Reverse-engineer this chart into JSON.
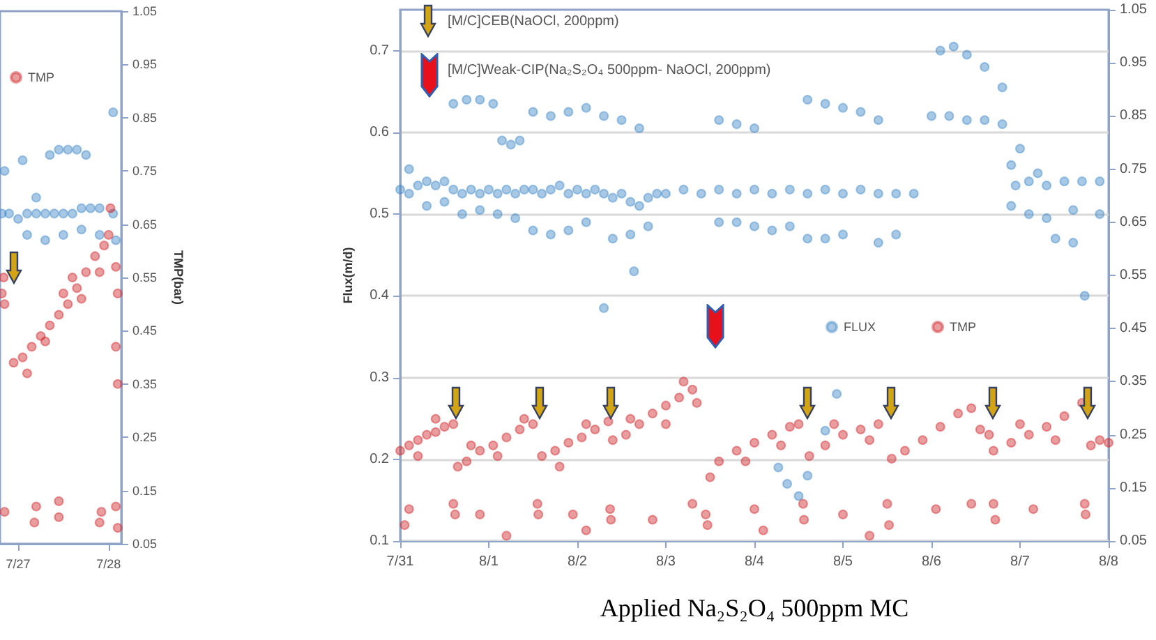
{
  "chart_data": [
    {
      "type": "scatter",
      "y2label": "TMP(bar)",
      "legend": "top left",
      "marker": "circle",
      "xlim": [
        "--07-26T19:12",
        "--07-28T03:22"
      ],
      "xticks": [
        {
          "value": "--07-27",
          "label": "7/27"
        },
        {
          "value": "--07-28",
          "label": "7/28"
        }
      ],
      "y2lim": [
        0.05,
        1.05
      ],
      "y2ticks": [
        0.05,
        0.15,
        0.25,
        0.35,
        0.45,
        0.55,
        0.65,
        0.75,
        0.85,
        0.95,
        1.05
      ],
      "series": [
        {
          "color": "#3f87c8",
          "axis": "y2",
          "x": [
            "--07-26T19:41",
            "--07-26T21:36",
            "--07-27T00:00",
            "--07-27T02:24",
            "--07-27T04:48",
            "--07-27T07:12",
            "--07-27T09:36",
            "--07-27T12:00",
            "--07-27T14:24",
            "--07-27T16:48",
            "--07-27T19:12",
            "--07-27T21:36",
            "--07-28T00:00",
            "--07-28T01:12",
            "--07-27T08:24",
            "--07-27T10:48",
            "--07-27T13:12",
            "--07-27T15:36",
            "--07-27T18:00",
            "--07-27T02:24",
            "--07-27T07:12",
            "--07-27T12:00",
            "--07-27T16:48",
            "--07-27T21:36",
            "--07-28T01:55",
            "--07-26T20:24",
            "--07-27T01:12",
            "--07-28T01:12",
            "--07-27T04:48"
          ],
          "values": [
            0.67,
            0.67,
            0.66,
            0.67,
            0.67,
            0.67,
            0.67,
            0.67,
            0.67,
            0.68,
            0.68,
            0.68,
            null,
            0.67,
            0.78,
            0.79,
            0.79,
            0.79,
            0.78,
            0.63,
            0.62,
            0.63,
            0.64,
            0.63,
            0.62,
            0.75,
            0.77,
            0.86,
            0.7
          ]
        },
        {
          "name": "TMP",
          "color": "#d0262a",
          "axis": "y2",
          "x": [
            "--07-26T22:48",
            "--07-27T01:12",
            "--07-27T03:36",
            "--07-27T06:00",
            "--07-27T08:24",
            "--07-27T10:48",
            "--07-27T13:12",
            "--07-27T15:36",
            "--07-27T18:00",
            "--07-27T20:24",
            "--07-27T22:48",
            "--07-28T00:00",
            "--07-28T00:29",
            "--07-27T02:24",
            "--07-27T07:12",
            "--07-27T12:00",
            "--07-27T16:48",
            "--07-27T21:36",
            "--07-27T14:24",
            "--07-26T19:41",
            "--07-26T20:24",
            "--07-26T20:10",
            "--07-28T01:55",
            "--07-28T02:24",
            "--07-28T01:55",
            "--07-28T02:24",
            "--07-26T20:24",
            "--07-27T04:19",
            "--07-27T04:48",
            "--07-27T10:48",
            "--07-27T10:48",
            "--07-27T21:36",
            "--07-27T22:05",
            "--07-28T01:55",
            "--07-28T02:24"
          ],
          "values": [
            0.39,
            0.4,
            0.42,
            0.44,
            0.46,
            0.48,
            0.5,
            0.53,
            0.56,
            0.59,
            0.61,
            0.63,
            0.68,
            0.37,
            0.43,
            0.52,
            0.51,
            0.56,
            0.55,
            0.52,
            0.5,
            0.55,
            0.57,
            0.52,
            0.42,
            0.35,
            0.11,
            0.09,
            0.12,
            0.1,
            0.13,
            0.09,
            0.11,
            0.12,
            0.08
          ]
        }
      ]
    },
    {
      "type": "scatter",
      "ylabel": "Flux(m/d)",
      "legend": "right",
      "marker": "circle",
      "grid": "y",
      "annotations": [
        "[M/C]CEB(NaOCl, 200ppm)",
        "[M/C]Weak-CIP(Na₂S₂O₄ 500ppm- NaOCl, 200ppm)",
        "Applied Na₂S₂O₄ 500ppm MC"
      ],
      "xlim": [
        "--07-31",
        "--08-08"
      ],
      "xticks": [
        {
          "value": "--07-31",
          "label": "7/31"
        },
        {
          "value": "--08-01",
          "label": "8/1"
        },
        {
          "value": "--08-02",
          "label": "8/2"
        },
        {
          "value": "--08-03",
          "label": "8/3"
        },
        {
          "value": "--08-04",
          "label": "8/4"
        },
        {
          "value": "--08-05",
          "label": "8/5"
        },
        {
          "value": "--08-06",
          "label": "8/6"
        },
        {
          "value": "--08-07",
          "label": "8/7"
        },
        {
          "value": "--08-08",
          "label": "8/8"
        }
      ],
      "ylim": [
        0.1,
        0.75
      ],
      "yticks": [
        0.1,
        0.2,
        0.3,
        0.4,
        0.5,
        0.6,
        0.7
      ],
      "y2lim": [
        0.05,
        1.05
      ],
      "y2ticks": [
        0.05,
        0.15,
        0.25,
        0.35,
        0.45,
        0.55,
        0.65,
        0.75,
        0.85,
        0.95,
        1.05
      ],
      "series": [
        {
          "name": "FLUX",
          "color": "#3f87c8",
          "x": [
            "--07-31T00:00",
            "--07-31T02:24",
            "--07-31T04:48",
            "--07-31T07:12",
            "--07-31T09:36",
            "--07-31T12:00",
            "--07-31T14:24",
            "--07-31T16:48",
            "--07-31T19:12",
            "--07-31T21:36",
            "--08-01T00:00",
            "--08-01T02:24",
            "--08-01T04:48",
            "--08-01T07:12",
            "--08-01T09:36",
            "--08-01T12:00",
            "--08-01T14:24",
            "--08-01T16:48",
            "--08-01T19:12",
            "--08-01T21:36",
            "--08-02T00:00",
            "--08-02T02:24",
            "--08-02T04:48",
            "--08-02T07:12",
            "--08-02T09:36",
            "--08-02T12:00",
            "--08-02T14:24",
            "--08-02T16:48",
            "--08-02T19:12",
            "--08-02T21:36",
            "--08-03T00:00",
            "--08-03T04:48",
            "--08-03T09:36",
            "--08-03T14:24",
            "--08-03T19:12",
            "--08-04T00:00",
            "--08-04T04:48",
            "--08-04T09:36",
            "--08-04T14:24",
            "--08-04T19:12",
            "--08-05T00:00",
            "--08-05T04:48",
            "--08-05T09:36",
            "--08-05T14:24",
            "--08-05T19:12",
            "--08-06T00:00",
            "--08-06T04:48",
            "--08-06T09:36",
            "--08-06T14:24",
            "--08-06T19:12",
            "--08-06T22:48",
            "--08-07T02:24",
            "--08-07T07:12",
            "--08-07T12:00",
            "--08-07T16:48",
            "--08-07T21:36",
            "--07-31T02:24",
            "--07-31T07:12",
            "--07-31T12:00",
            "--07-31T14:24",
            "--07-31T18:00",
            "--07-31T21:36",
            "--08-01T01:12",
            "--08-01T03:36",
            "--08-01T06:00",
            "--08-01T08:24",
            "--08-01T12:00",
            "--08-01T16:48",
            "--08-01T21:36",
            "--08-02T02:24",
            "--08-02T07:12",
            "--08-02T12:00",
            "--08-02T16:48",
            "--08-03T14:24",
            "--08-03T19:12",
            "--08-04T00:00",
            "--08-04T14:24",
            "--08-04T19:12",
            "--08-05T00:00",
            "--08-05T04:48",
            "--08-05T09:36",
            "--08-06T02:24",
            "--08-06T06:00",
            "--08-06T09:36",
            "--08-06T14:24",
            "--08-06T19:12",
            "--07-31T16:48",
            "--07-31T21:36",
            "--08-01T02:24",
            "--08-01T07:12",
            "--08-01T12:00",
            "--08-01T16:48",
            "--08-01T21:36",
            "--08-02T02:24",
            "--08-02T09:36",
            "--08-02T14:24",
            "--08-02T19:12",
            "--08-03T14:24",
            "--08-03T19:12",
            "--08-04T00:00",
            "--08-04T04:48",
            "--08-04T09:36",
            "--08-04T14:24",
            "--08-04T19:12",
            "--08-05T00:00",
            "--08-05T09:36",
            "--08-05T14:24",
            "--08-06T21:36",
            "--08-07T02:24",
            "--08-07T07:12",
            "--08-07T14:24",
            "--08-07T21:36",
            "--08-06T21:36",
            "--08-07T00:00",
            "--08-07T04:48",
            "--08-07T09:36",
            "--08-07T14:24",
            "--08-02T07:12",
            "--08-04T06:29",
            "--08-04T08:53",
            "--08-04T12:00",
            "--08-04T14:24",
            "--08-04T19:12",
            "--08-04T22:19",
            "--08-07T17:31",
            "--08-02T15:22"
          ],
          "values": [
            0.53,
            0.525,
            0.535,
            0.54,
            0.535,
            0.54,
            0.53,
            0.525,
            0.53,
            0.525,
            0.53,
            0.525,
            0.53,
            0.525,
            0.53,
            0.53,
            0.525,
            0.53,
            0.535,
            0.525,
            0.53,
            0.525,
            0.53,
            0.525,
            0.52,
            0.525,
            0.515,
            0.51,
            0.52,
            0.525,
            0.525,
            0.53,
            0.525,
            0.53,
            0.525,
            0.53,
            0.525,
            0.53,
            0.525,
            0.53,
            0.525,
            0.53,
            0.525,
            0.525,
            0.525,
            0.62,
            0.62,
            0.615,
            0.615,
            0.61,
            0.535,
            0.54,
            0.535,
            0.54,
            0.54,
            0.54,
            0.555,
            0.51,
            0.515,
            0.635,
            0.64,
            0.64,
            0.635,
            0.59,
            0.585,
            0.59,
            0.625,
            0.62,
            0.625,
            0.63,
            0.62,
            0.615,
            0.605,
            0.615,
            0.61,
            0.605,
            0.64,
            0.635,
            0.63,
            0.625,
            0.615,
            0.7,
            0.705,
            0.695,
            0.68,
            0.655,
            0.5,
            0.505,
            0.5,
            0.495,
            0.48,
            0.475,
            0.48,
            0.49,
            0.47,
            0.475,
            0.485,
            0.49,
            0.49,
            0.485,
            0.48,
            0.485,
            0.47,
            0.47,
            0.475,
            0.465,
            0.475,
            0.51,
            0.5,
            0.495,
            0.505,
            0.5,
            0.56,
            0.58,
            0.55,
            0.47,
            0.465,
            0.385,
            0.19,
            0.17,
            0.155,
            0.18,
            0.235,
            0.28,
            0.4,
            0.43
          ]
        },
        {
          "name": "TMP",
          "color": "#d0262a",
          "axis": "y2",
          "x": [
            "--07-31T00:00",
            "--07-31T02:24",
            "--07-31T04:48",
            "--07-31T07:12",
            "--07-31T09:36",
            "--07-31T12:00",
            "--07-31T14:24",
            "--07-31T04:48",
            "--07-31T09:36",
            "--07-31T15:36",
            "--07-31T18:00",
            "--07-31T21:36",
            "--08-01T01:12",
            "--08-01T04:48",
            "--08-01T08:24",
            "--08-01T12:00",
            "--07-31T19:12",
            "--08-01T02:24",
            "--08-01T09:36",
            "--08-01T14:24",
            "--08-01T18:00",
            "--08-01T21:36",
            "--08-02T01:12",
            "--08-02T04:48",
            "--08-02T08:24",
            "--08-01T19:12",
            "--08-02T02:24",
            "--08-02T09:36",
            "--08-02T13:12",
            "--08-02T16:48",
            "--08-02T20:24",
            "--08-03T00:00",
            "--08-03T03:36",
            "--08-03T07:12",
            "--08-02T14:24",
            "--08-03T00:00",
            "--08-03T04:48",
            "--08-03T08:24",
            "--08-03T12:00",
            "--08-03T14:24",
            "--08-03T19:12",
            "--08-04T00:00",
            "--08-04T04:48",
            "--08-04T09:36",
            "--08-04T12:00",
            "--08-03T21:36",
            "--08-04T07:12",
            "--08-04T14:53",
            "--08-04T19:12",
            "--08-05T00:00",
            "--08-05T04:48",
            "--08-05T09:36",
            "--08-04T21:36",
            "--08-05T07:12",
            "--08-05T13:12",
            "--08-05T16:48",
            "--08-05T21:36",
            "--08-06T02:24",
            "--08-06T07:12",
            "--08-06T10:48",
            "--08-06T13:12",
            "--08-06T15:36",
            "--08-06T16:48",
            "--08-06T21:36",
            "--08-07T02:24",
            "--08-07T07:12",
            "--08-07T12:00",
            "--08-07T16:48",
            "--08-07T00:00",
            "--08-07T09:36",
            "--08-07T19:12",
            "--08-07T21:36",
            "--08-08T00:00",
            "--07-31T02:24",
            "--07-31T14:24",
            "--07-31T14:53",
            "--07-31T21:36",
            "--08-01T13:12",
            "--08-01T13:26",
            "--08-01T22:48",
            "--08-02T08:53",
            "--08-02T09:07",
            "--08-02T20:24",
            "--08-03T07:12",
            "--08-03T10:48",
            "--08-03T11:17",
            "--08-04T00:00",
            "--08-04T13:12",
            "--08-04T13:26",
            "--08-05T00:00",
            "--08-05T12:00",
            "--08-05T12:29",
            "--08-06T01:12",
            "--08-06T10:48",
            "--08-06T16:48",
            "--08-06T17:17",
            "--08-07T03:36",
            "--08-07T17:31",
            "--08-07T17:46",
            "--07-31T01:12",
            "--08-01T04:48",
            "--08-02T02:24",
            "--08-04T02:24",
            "--08-05T07:12"
          ],
          "values": [
            0.22,
            0.23,
            0.24,
            0.25,
            0.255,
            0.265,
            0.27,
            0.21,
            0.28,
            0.19,
            0.2,
            0.22,
            0.23,
            0.245,
            0.26,
            0.27,
            0.23,
            0.21,
            0.28,
            0.21,
            0.22,
            0.235,
            0.245,
            0.26,
            0.275,
            0.19,
            0.27,
            0.24,
            0.25,
            0.27,
            0.29,
            0.305,
            0.32,
            0.335,
            0.28,
            0.27,
            0.35,
            0.31,
            0.17,
            0.2,
            0.22,
            0.235,
            0.25,
            0.265,
            0.27,
            0.2,
            0.23,
            0.21,
            0.23,
            0.25,
            0.26,
            0.27,
            0.27,
            0.24,
            0.205,
            0.22,
            0.24,
            0.265,
            0.29,
            0.3,
            0.26,
            0.25,
            0.22,
            0.235,
            0.25,
            0.265,
            0.285,
            0.31,
            0.27,
            0.24,
            0.23,
            0.24,
            0.235,
            0.11,
            0.12,
            0.1,
            0.1,
            0.12,
            0.1,
            0.1,
            0.11,
            0.09,
            0.09,
            0.12,
            0.1,
            0.08,
            0.11,
            0.12,
            0.09,
            0.1,
            0.12,
            0.08,
            0.11,
            0.12,
            0.12,
            0.09,
            0.11,
            0.12,
            0.1,
            0.08,
            0.06,
            0.07,
            0.07,
            0.06
          ]
        }
      ]
    }
  ]
}
